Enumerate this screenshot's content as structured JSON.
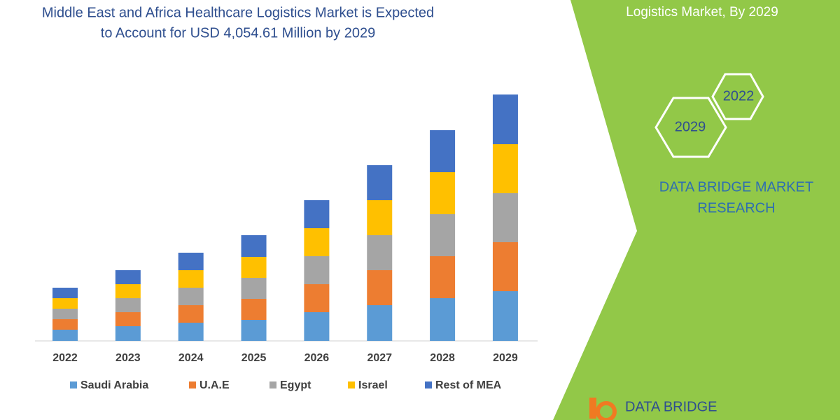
{
  "chart_data": {
    "type": "stacked_bar",
    "title": [
      "Middle East and Africa Healthcare Logistics Market is Expected",
      "to Account for USD 4,054.61 Million by 2029"
    ],
    "categories": [
      "2022",
      "2023",
      "2024",
      "2025",
      "2026",
      "2027",
      "2028",
      "2029"
    ],
    "series": [
      {
        "name": "Saudi Arabia",
        "color": "#5b9bd5",
        "values": [
          16,
          21,
          26,
          30,
          41,
          51,
          61,
          71
        ]
      },
      {
        "name": "U.A.E",
        "color": "#ed7d31",
        "values": [
          15,
          20,
          25,
          30,
          40,
          50,
          60,
          70
        ]
      },
      {
        "name": "Egypt",
        "color": "#a5a5a5",
        "values": [
          15,
          20,
          25,
          30,
          40,
          50,
          60,
          70
        ]
      },
      {
        "name": "Israel",
        "color": "#ffc000",
        "values": [
          15,
          20,
          25,
          30,
          40,
          50,
          60,
          70
        ]
      },
      {
        "name": "Rest of MEA",
        "color": "#4472c4",
        "values": [
          15,
          20,
          25,
          31,
          40,
          50,
          60,
          71
        ]
      }
    ],
    "ylim": [
      0,
      352
    ],
    "legend": "bottom"
  },
  "panel": {
    "heading": "Logistics Market, By 2029",
    "hex_a": "2022",
    "hex_b": "2029",
    "brand": [
      "DATA BRIDGE MARKET",
      "RESEARCH"
    ],
    "logo": "DATA BRIDGE"
  }
}
